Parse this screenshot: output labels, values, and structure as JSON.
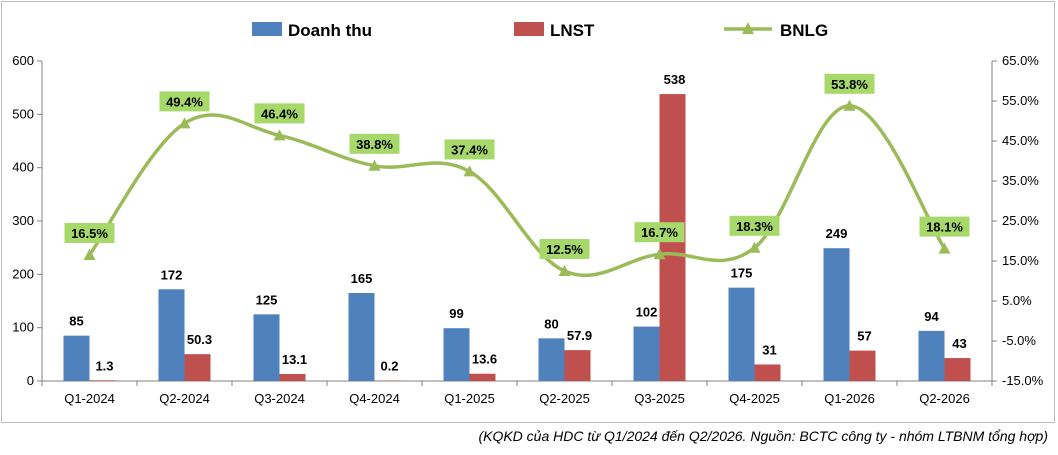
{
  "chart_data": {
    "type": "bar",
    "categories": [
      "Q1-2024",
      "Q2-2024",
      "Q3-2024",
      "Q4-2024",
      "Q1-2025",
      "Q2-2025",
      "Q3-2025",
      "Q4-2025",
      "Q1-2026",
      "Q2-2026"
    ],
    "series": [
      {
        "name": "Doanh thu",
        "type": "bar",
        "axis": "left",
        "color": "#4f81bd",
        "values": [
          85,
          172,
          125,
          165,
          99,
          80,
          102,
          175,
          249,
          94
        ],
        "labels": [
          "85",
          "172",
          "125",
          "165",
          "99",
          "80",
          "102",
          "175",
          "249",
          "94"
        ]
      },
      {
        "name": "LNST",
        "type": "bar",
        "axis": "left",
        "color": "#c0504d",
        "values": [
          1.3,
          50.3,
          13.1,
          0.2,
          13.6,
          57.9,
          538,
          31,
          57,
          43
        ],
        "labels": [
          "1.3",
          "50.3",
          "13.1",
          "0.2",
          "13.6",
          "57.9",
          "538",
          "31",
          "57",
          "43"
        ]
      },
      {
        "name": "BNLG",
        "type": "line",
        "axis": "right",
        "color": "#9bbb59",
        "label_bg": "#a6d96a",
        "values": [
          16.5,
          49.4,
          46.4,
          38.8,
          37.4,
          12.5,
          16.7,
          18.3,
          53.8,
          18.1
        ],
        "labels": [
          "16.5%",
          "49.4%",
          "46.4%",
          "38.8%",
          "37.4%",
          "12.5%",
          "16.7%",
          "18.3%",
          "53.8%",
          "18.1%"
        ]
      }
    ],
    "y_left": {
      "min": 0,
      "max": 600,
      "ticks": [
        "0",
        "100",
        "200",
        "300",
        "400",
        "500",
        "600"
      ]
    },
    "y_right": {
      "min": -15,
      "max": 65,
      "ticks": [
        "-15.0%",
        "-5.0%",
        "5.0%",
        "15.0%",
        "25.0%",
        "35.0%",
        "45.0%",
        "55.0%",
        "65.0%"
      ]
    },
    "legend": "top-center",
    "grid": false
  },
  "source_note": "(KQKD của HDC từ Q1/2024 đến Q2/2026. Nguồn: BCTC công ty - nhóm LTBNM tổng hợp)"
}
